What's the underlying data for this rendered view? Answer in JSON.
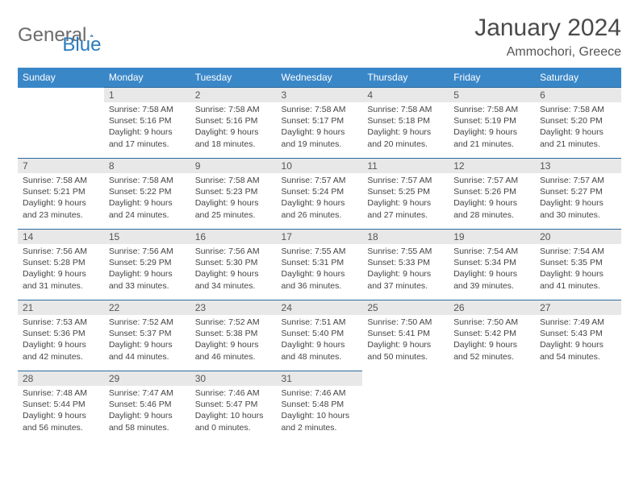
{
  "logo": {
    "text1": "General",
    "text2": "Blue"
  },
  "title": "January 2024",
  "location": "Ammochori, Greece",
  "colors": {
    "header_bg": "#3a87c8",
    "header_fg": "#ffffff",
    "daynum_bg": "#e8e8e8",
    "daynum_fg": "#555555",
    "cell_fg": "#444444",
    "border": "#2a6aa0",
    "logo_gray": "#6b6b6b",
    "logo_blue": "#2a7bbf",
    "title_color": "#4a4a4a"
  },
  "weekdays": [
    "Sunday",
    "Monday",
    "Tuesday",
    "Wednesday",
    "Thursday",
    "Friday",
    "Saturday"
  ],
  "weeks": [
    [
      null,
      {
        "n": "1",
        "sr": "7:58 AM",
        "ss": "5:16 PM",
        "dh": "9",
        "dm": "17"
      },
      {
        "n": "2",
        "sr": "7:58 AM",
        "ss": "5:16 PM",
        "dh": "9",
        "dm": "18"
      },
      {
        "n": "3",
        "sr": "7:58 AM",
        "ss": "5:17 PM",
        "dh": "9",
        "dm": "19"
      },
      {
        "n": "4",
        "sr": "7:58 AM",
        "ss": "5:18 PM",
        "dh": "9",
        "dm": "20"
      },
      {
        "n": "5",
        "sr": "7:58 AM",
        "ss": "5:19 PM",
        "dh": "9",
        "dm": "21"
      },
      {
        "n": "6",
        "sr": "7:58 AM",
        "ss": "5:20 PM",
        "dh": "9",
        "dm": "21"
      }
    ],
    [
      {
        "n": "7",
        "sr": "7:58 AM",
        "ss": "5:21 PM",
        "dh": "9",
        "dm": "23"
      },
      {
        "n": "8",
        "sr": "7:58 AM",
        "ss": "5:22 PM",
        "dh": "9",
        "dm": "24"
      },
      {
        "n": "9",
        "sr": "7:58 AM",
        "ss": "5:23 PM",
        "dh": "9",
        "dm": "25"
      },
      {
        "n": "10",
        "sr": "7:57 AM",
        "ss": "5:24 PM",
        "dh": "9",
        "dm": "26"
      },
      {
        "n": "11",
        "sr": "7:57 AM",
        "ss": "5:25 PM",
        "dh": "9",
        "dm": "27"
      },
      {
        "n": "12",
        "sr": "7:57 AM",
        "ss": "5:26 PM",
        "dh": "9",
        "dm": "28"
      },
      {
        "n": "13",
        "sr": "7:57 AM",
        "ss": "5:27 PM",
        "dh": "9",
        "dm": "30"
      }
    ],
    [
      {
        "n": "14",
        "sr": "7:56 AM",
        "ss": "5:28 PM",
        "dh": "9",
        "dm": "31"
      },
      {
        "n": "15",
        "sr": "7:56 AM",
        "ss": "5:29 PM",
        "dh": "9",
        "dm": "33"
      },
      {
        "n": "16",
        "sr": "7:56 AM",
        "ss": "5:30 PM",
        "dh": "9",
        "dm": "34"
      },
      {
        "n": "17",
        "sr": "7:55 AM",
        "ss": "5:31 PM",
        "dh": "9",
        "dm": "36"
      },
      {
        "n": "18",
        "sr": "7:55 AM",
        "ss": "5:33 PM",
        "dh": "9",
        "dm": "37"
      },
      {
        "n": "19",
        "sr": "7:54 AM",
        "ss": "5:34 PM",
        "dh": "9",
        "dm": "39"
      },
      {
        "n": "20",
        "sr": "7:54 AM",
        "ss": "5:35 PM",
        "dh": "9",
        "dm": "41"
      }
    ],
    [
      {
        "n": "21",
        "sr": "7:53 AM",
        "ss": "5:36 PM",
        "dh": "9",
        "dm": "42"
      },
      {
        "n": "22",
        "sr": "7:52 AM",
        "ss": "5:37 PM",
        "dh": "9",
        "dm": "44"
      },
      {
        "n": "23",
        "sr": "7:52 AM",
        "ss": "5:38 PM",
        "dh": "9",
        "dm": "46"
      },
      {
        "n": "24",
        "sr": "7:51 AM",
        "ss": "5:40 PM",
        "dh": "9",
        "dm": "48"
      },
      {
        "n": "25",
        "sr": "7:50 AM",
        "ss": "5:41 PM",
        "dh": "9",
        "dm": "50"
      },
      {
        "n": "26",
        "sr": "7:50 AM",
        "ss": "5:42 PM",
        "dh": "9",
        "dm": "52"
      },
      {
        "n": "27",
        "sr": "7:49 AM",
        "ss": "5:43 PM",
        "dh": "9",
        "dm": "54"
      }
    ],
    [
      {
        "n": "28",
        "sr": "7:48 AM",
        "ss": "5:44 PM",
        "dh": "9",
        "dm": "56"
      },
      {
        "n": "29",
        "sr": "7:47 AM",
        "ss": "5:46 PM",
        "dh": "9",
        "dm": "58"
      },
      {
        "n": "30",
        "sr": "7:46 AM",
        "ss": "5:47 PM",
        "dh": "10",
        "dm": "0"
      },
      {
        "n": "31",
        "sr": "7:46 AM",
        "ss": "5:48 PM",
        "dh": "10",
        "dm": "2"
      },
      null,
      null,
      null
    ]
  ],
  "labels": {
    "sunrise": "Sunrise:",
    "sunset": "Sunset:",
    "daylight": "Daylight:",
    "hours": "hours",
    "and": "and",
    "minutes": "minutes."
  }
}
